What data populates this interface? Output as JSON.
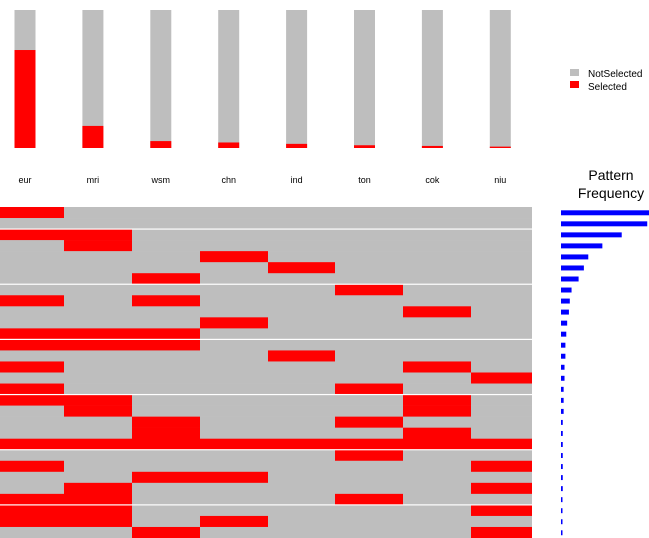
{
  "chart_data": {
    "type": "heatmap",
    "categories": [
      "eur",
      "mri",
      "wsm",
      "chn",
      "ind",
      "ton",
      "cok",
      "niu"
    ],
    "selected_fraction": [
      0.71,
      0.16,
      0.05,
      0.04,
      0.03,
      0.02,
      0.015,
      0.01
    ],
    "legend": {
      "placement": "top-right",
      "labels": [
        "NotSelected",
        "Selected"
      ]
    },
    "frequency_title_lines": [
      "Pattern",
      "Frequency"
    ],
    "colors": {
      "not_selected": "#bebebe",
      "selected": "#ff0000",
      "frequency": "#0000ff",
      "separator": "#ffffff"
    },
    "patterns": [
      [
        1,
        0,
        0,
        0,
        0,
        0,
        0,
        0
      ],
      [
        0,
        0,
        0,
        0,
        0,
        0,
        0,
        0
      ],
      [
        1,
        1,
        0,
        0,
        0,
        0,
        0,
        0
      ],
      [
        0,
        1,
        0,
        0,
        0,
        0,
        0,
        0
      ],
      [
        0,
        0,
        0,
        1,
        0,
        0,
        0,
        0
      ],
      [
        0,
        0,
        0,
        0,
        1,
        0,
        0,
        0
      ],
      [
        0,
        0,
        1,
        0,
        0,
        0,
        0,
        0
      ],
      [
        0,
        0,
        0,
        0,
        0,
        1,
        0,
        0
      ],
      [
        1,
        0,
        1,
        0,
        0,
        0,
        0,
        0
      ],
      [
        0,
        0,
        0,
        0,
        0,
        0,
        1,
        0
      ],
      [
        0,
        0,
        0,
        1,
        0,
        0,
        0,
        0
      ],
      [
        1,
        1,
        1,
        0,
        0,
        0,
        0,
        0
      ],
      [
        1,
        1,
        1,
        0,
        0,
        0,
        0,
        0
      ],
      [
        0,
        0,
        0,
        0,
        1,
        0,
        0,
        0
      ],
      [
        1,
        0,
        0,
        0,
        0,
        0,
        1,
        0
      ],
      [
        0,
        0,
        0,
        0,
        0,
        0,
        0,
        1
      ],
      [
        1,
        0,
        0,
        0,
        0,
        1,
        0,
        0
      ],
      [
        1,
        1,
        0,
        0,
        0,
        0,
        1,
        0
      ],
      [
        0,
        1,
        0,
        0,
        0,
        0,
        1,
        0
      ],
      [
        0,
        0,
        1,
        0,
        0,
        1,
        0,
        0
      ],
      [
        0,
        0,
        1,
        0,
        0,
        0,
        1,
        0
      ],
      [
        1,
        1,
        1,
        1,
        1,
        1,
        1,
        1
      ],
      [
        0,
        0,
        0,
        0,
        0,
        1,
        0,
        0
      ],
      [
        1,
        0,
        0,
        0,
        0,
        0,
        0,
        1
      ],
      [
        0,
        0,
        1,
        1,
        0,
        0,
        0,
        0
      ],
      [
        0,
        1,
        0,
        0,
        0,
        0,
        0,
        1
      ],
      [
        1,
        1,
        0,
        0,
        0,
        1,
        0,
        0
      ],
      [
        1,
        1,
        0,
        0,
        0,
        0,
        0,
        1
      ],
      [
        1,
        1,
        0,
        1,
        0,
        0,
        0,
        0
      ],
      [
        0,
        0,
        1,
        0,
        0,
        0,
        0,
        1
      ]
    ],
    "frequency": [
      1.0,
      0.98,
      0.69,
      0.47,
      0.31,
      0.26,
      0.2,
      0.12,
      0.1,
      0.09,
      0.07,
      0.06,
      0.05,
      0.05,
      0.04,
      0.04,
      0.03,
      0.03,
      0.03,
      0.02,
      0.02,
      0.02,
      0.02,
      0.02,
      0.02,
      0.02,
      0.01,
      0.01,
      0.01,
      0.01
    ]
  }
}
